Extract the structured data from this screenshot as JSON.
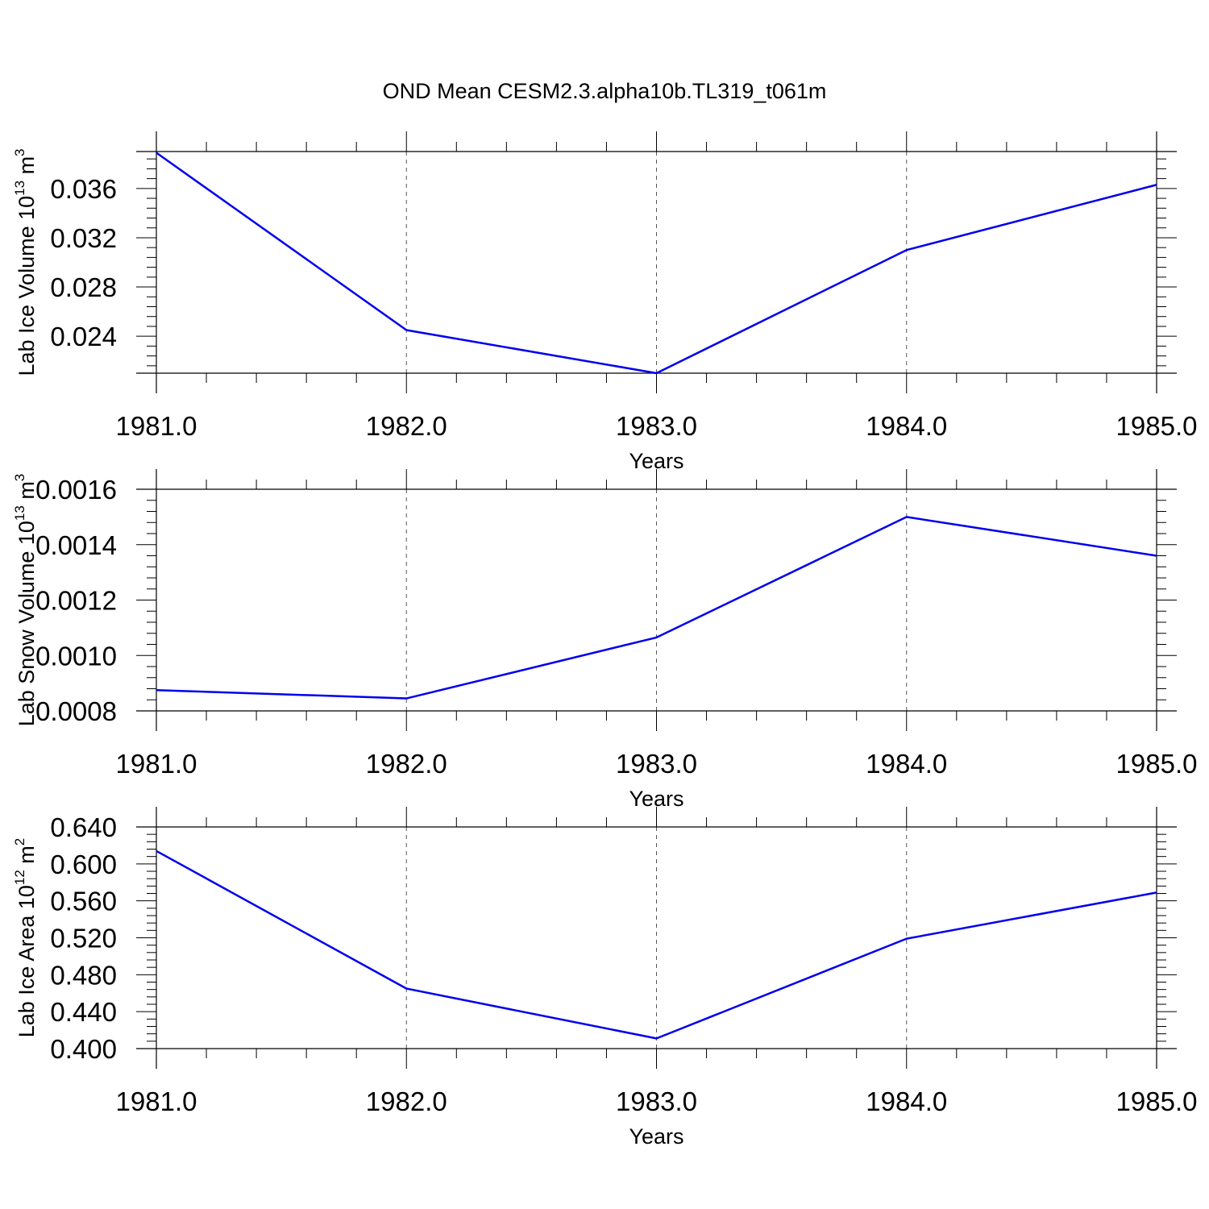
{
  "title": "OND Mean CESM2.3.alpha10b.TL319_t061m",
  "line_color": "#0000ee",
  "chart_data": [
    {
      "type": "line",
      "title": "OND Mean CESM2.3.alpha10b.TL319_t061m",
      "x": [
        1981,
        1982,
        1983,
        1984,
        1985
      ],
      "series": [
        {
          "values": [
            0.0389,
            0.0245,
            0.021,
            0.031,
            0.0363
          ]
        }
      ],
      "xlabel": "Years",
      "ylabel_main": "Lab Ice Volume 10",
      "ylabel_exp": "13",
      "ylabel_unit": " m",
      "ylabel_unit_exp": "3",
      "xlim": [
        1981,
        1985
      ],
      "ylim": [
        0.021,
        0.039
      ],
      "xticks": [
        1981,
        1982,
        1983,
        1984,
        1985
      ],
      "xtick_labels": [
        "1981.0",
        "1982.0",
        "1983.0",
        "1984.0",
        "1985.0"
      ],
      "yticks": [
        0.024,
        0.028,
        0.032,
        0.036
      ],
      "ytick_labels": [
        "0.024",
        "0.028",
        "0.032",
        "0.036"
      ],
      "grid": "vertical-dashed"
    },
    {
      "type": "line",
      "x": [
        1981,
        1982,
        1983,
        1984,
        1985
      ],
      "series": [
        {
          "values": [
            0.000875,
            0.000845,
            0.001065,
            0.0015,
            0.00136
          ]
        }
      ],
      "xlabel": "Years",
      "ylabel_main": "Lab Snow Volume 10",
      "ylabel_exp": "13",
      "ylabel_unit": " m",
      "ylabel_unit_exp": "3",
      "xlim": [
        1981,
        1985
      ],
      "ylim": [
        0.0008,
        0.0016
      ],
      "xticks": [
        1981,
        1982,
        1983,
        1984,
        1985
      ],
      "xtick_labels": [
        "1981.0",
        "1982.0",
        "1983.0",
        "1984.0",
        "1985.0"
      ],
      "yticks": [
        0.0008,
        0.001,
        0.0012,
        0.0014,
        0.0016
      ],
      "ytick_labels": [
        "0.0008",
        "0.0010",
        "0.0012",
        "0.0014",
        "0.0016"
      ],
      "grid": "vertical-dashed"
    },
    {
      "type": "line",
      "x": [
        1981,
        1982,
        1983,
        1984,
        1985
      ],
      "series": [
        {
          "values": [
            0.614,
            0.465,
            0.411,
            0.519,
            0.569
          ]
        }
      ],
      "xlabel": "Years",
      "ylabel_main": "Lab Ice Area 10",
      "ylabel_exp": "12",
      "ylabel_unit": " m",
      "ylabel_unit_exp": "2",
      "xlim": [
        1981,
        1985
      ],
      "ylim": [
        0.4,
        0.64
      ],
      "xticks": [
        1981,
        1982,
        1983,
        1984,
        1985
      ],
      "xtick_labels": [
        "1981.0",
        "1982.0",
        "1983.0",
        "1984.0",
        "1985.0"
      ],
      "yticks": [
        0.4,
        0.44,
        0.48,
        0.52,
        0.56,
        0.6,
        0.64
      ],
      "ytick_labels": [
        "0.400",
        "0.440",
        "0.480",
        "0.520",
        "0.560",
        "0.600",
        "0.640"
      ],
      "grid": "vertical-dashed"
    }
  ]
}
